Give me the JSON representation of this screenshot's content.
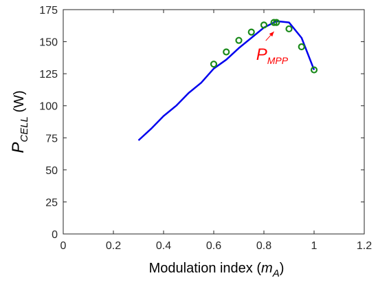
{
  "chart_data": {
    "type": "line",
    "xlabel": {
      "main": "Modulation index (",
      "sym": "m",
      "sub": "A",
      "close": ")"
    },
    "ylabel": {
      "sym": "P",
      "sub": "CELL",
      "unit": " (W)"
    },
    "xlim": [
      0,
      1.2
    ],
    "ylim": [
      0,
      175
    ],
    "xticks": [
      0,
      0.2,
      0.4,
      0.6,
      0.8,
      1,
      1.2
    ],
    "xtick_labels": [
      "0",
      "0.2",
      "0.4",
      "0.6",
      "0.8",
      "1",
      "1.2"
    ],
    "yticks": [
      0,
      25,
      50,
      75,
      100,
      125,
      150,
      175
    ],
    "ytick_labels": [
      "0",
      "25",
      "50",
      "75",
      "100",
      "125",
      "150",
      "175"
    ],
    "grid": false,
    "series": [
      {
        "style": "line",
        "color": "#0000ee",
        "x": [
          0.3,
          0.35,
          0.4,
          0.45,
          0.5,
          0.55,
          0.6,
          0.65,
          0.7,
          0.75,
          0.8,
          0.85,
          0.9,
          0.95,
          1.0
        ],
        "y": [
          73,
          82,
          92,
          100,
          110,
          118,
          129,
          136,
          145,
          153,
          161,
          166,
          165,
          153,
          128
        ]
      },
      {
        "style": "marker",
        "marker": "circle",
        "color": "#1a8a1a",
        "x": [
          0.6,
          0.65,
          0.7,
          0.75,
          0.8,
          0.84,
          0.85,
          0.9,
          0.95,
          1.0
        ],
        "y": [
          132.5,
          142,
          151,
          157.5,
          163,
          165,
          165,
          160,
          146,
          128
        ]
      }
    ],
    "annotations": [
      {
        "sym": "P",
        "sub": "MPP",
        "color": "#ff0000",
        "point_to": [
          0.84,
          160
        ],
        "text_at": [
          0.78,
          140
        ]
      }
    ]
  }
}
